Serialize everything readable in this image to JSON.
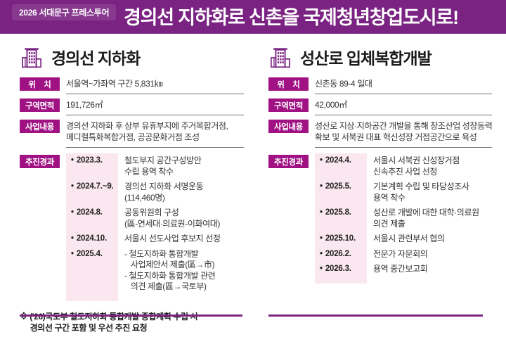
{
  "header": {
    "tour_label": "2026 서대문구 프레스투어",
    "title": "경의선 지하화로 신촌을 국제청년창업도시로!"
  },
  "bullet": "•",
  "colors": {
    "header_purple": "#7A2383",
    "badge_magenta": "#A01284",
    "pink_strip": "#FAE7EF",
    "rule_purple": "#7A2383"
  },
  "sections": [
    {
      "title": "경의선 지하화",
      "icon": "building-icon",
      "fields": [
        {
          "label": "위    치",
          "value": "서울역~가좌역 구간 5,831㎞"
        },
        {
          "label": "구역면적",
          "value": "191,726㎡"
        },
        {
          "label": "사업내용",
          "value": "경의선 지하화 후 상부 유휴부지에 주거복합거점,\n메디컬특화복합거점, 공공문화거점 조성"
        }
      ],
      "progress_label": "추진경과",
      "timeline": [
        {
          "date": "2023.3.",
          "desc": "철도부지 공간구성방안\n수립 용역 착수"
        },
        {
          "date": "2024.7.~9.",
          "desc": "경의선 지하화 서명운동\n(114,460명)"
        },
        {
          "date": "2024.8.",
          "desc": "공동위원회 구성\n(區-연세대·의료원-이화여대)"
        },
        {
          "date": "2024.10.",
          "desc": "서울시 선도사업 후보지 선정"
        },
        {
          "date": "2025.4.",
          "desc": "- 철도지하화 통합개발\n   사업제안서 제출(區→市)\n- 철도지하화 통합개발 관련\n   의견 제출(區→국토부)"
        }
      ],
      "footnote": "※ ('26)국토부 철도지하화 통합개발 종합계획 수립 시\n     경의선 구간 포함 및 우선 추진 요청"
    },
    {
      "title": "성산로 입체복합개발",
      "icon": "building-icon",
      "fields": [
        {
          "label": "위    치",
          "value": "신촌동 89-4 일대"
        },
        {
          "label": "구역면적",
          "value": "42,000㎡"
        },
        {
          "label": "사업내용",
          "value": "성산로 지상·지하공간 개발을 통해 창조산업 성장동력\n확보 및 서북권 대표 혁신성장 거점공간으로 육성"
        }
      ],
      "progress_label": "추진경과",
      "timeline": [
        {
          "date": "2024.4.",
          "desc": "서울시 서북권 신성장거점\n신속추진 사업 선정"
        },
        {
          "date": "2025.5.",
          "desc": "기본계획 수립 및 타당성조사\n용역 착수"
        },
        {
          "date": "2025.8.",
          "desc": "성산로 개발에 대한 대학·의료원\n의견 제출"
        },
        {
          "date": "2025.10.",
          "desc": "서울시 관련부서 협의"
        },
        {
          "date": "2026.2.",
          "desc": "전문가 자문회의"
        },
        {
          "date": "2026.3.",
          "desc": "용역 중간보고회"
        }
      ],
      "footnote": null
    }
  ]
}
